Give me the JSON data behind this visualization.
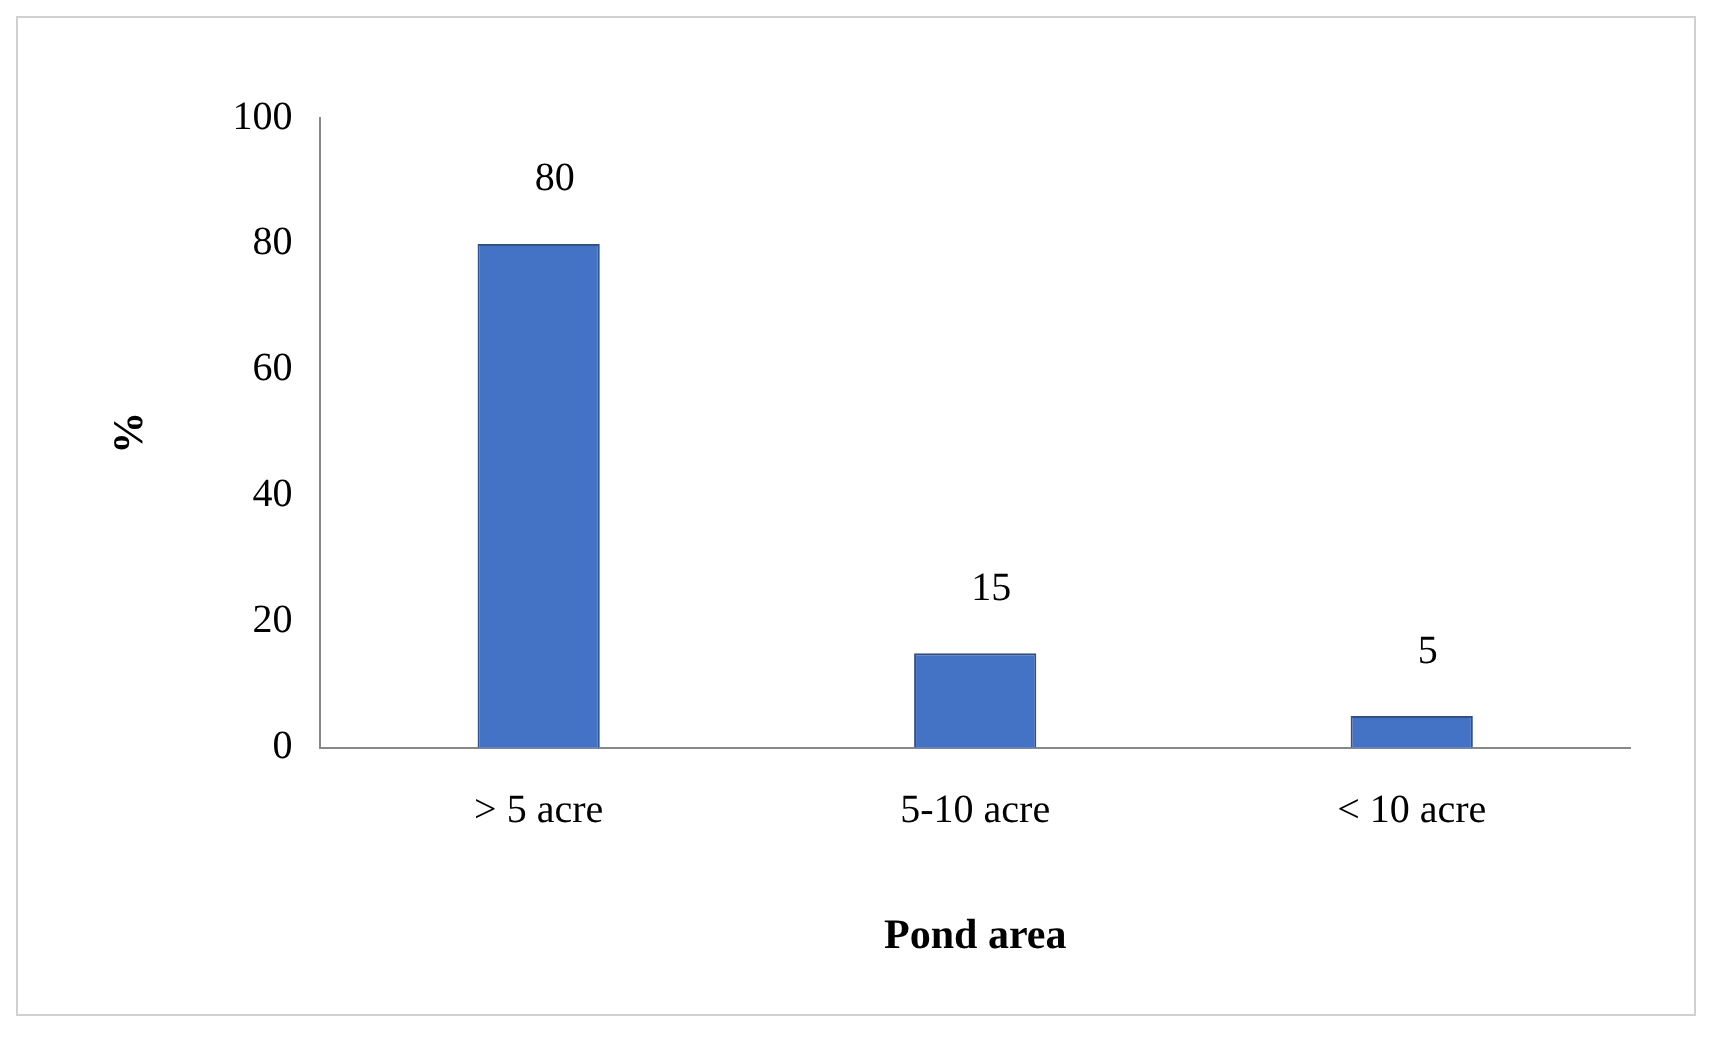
{
  "chart_data": {
    "type": "bar",
    "xlabel": "Pond area",
    "ylabel": "%",
    "categories": [
      "> 5 acre",
      "5-10 acre",
      "< 10 acre"
    ],
    "values": [
      80,
      15,
      5
    ],
    "color": "#4472c4",
    "ylim": [
      0,
      100
    ],
    "yticks": [
      0,
      20,
      40,
      60,
      80,
      100
    ],
    "grid": false,
    "legend": false,
    "data_labels": true
  }
}
